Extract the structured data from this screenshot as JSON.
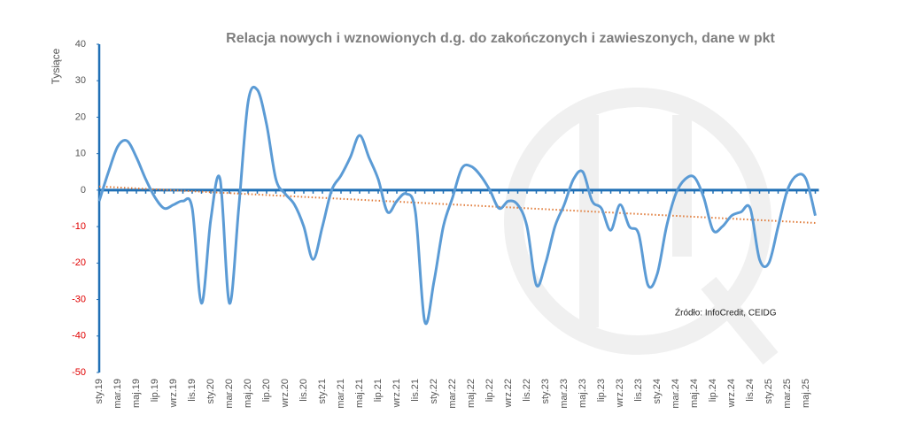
{
  "chart_data": {
    "type": "line",
    "title": "Relacja nowych i wznowionych d.g. do zakończonych i zawieszonych, dane w pkt",
    "y_label": "Tysiące",
    "source": "Źródło: InfoCredit, CEIDG",
    "categories": [
      "sty.19",
      null,
      "mar.19",
      null,
      "maj.19",
      null,
      "lip.19",
      null,
      "wrz.19",
      null,
      "lis.19",
      null,
      "sty.20",
      null,
      "mar.20",
      null,
      "maj.20",
      null,
      "lip.20",
      null,
      "wrz.20",
      null,
      "lis.20",
      null,
      "sty.21",
      null,
      "mar.21",
      null,
      "maj.21",
      null,
      "lip.21",
      null,
      "wrz.21",
      null,
      "lis.21",
      null,
      "sty.22",
      null,
      "mar.22",
      null,
      "maj.22",
      null,
      "lip.22",
      null,
      "wrz.22",
      null,
      "lis.22",
      null,
      "sty.23",
      null,
      "mar.23",
      null,
      "maj.23",
      null,
      "lip.23",
      null,
      "wrz.23",
      null,
      "lis.23",
      null,
      "sty.24",
      null,
      "mar.24",
      null,
      "maj.24",
      null,
      "lip.24",
      null,
      "wrz.24",
      null,
      "lis.24",
      null,
      "sty.25",
      null,
      "mar.25",
      null,
      "maj.25",
      null
    ],
    "series": [
      {
        "color": "#5b9bd5",
        "values": [
          -3,
          5,
          12,
          13.5,
          9,
          3,
          -2,
          -5,
          -4,
          -3,
          -5,
          -31,
          -8,
          3,
          -31,
          -5,
          24,
          27.5,
          18,
          3,
          -1,
          -4,
          -10,
          -19,
          -10,
          0,
          4,
          9,
          15,
          9,
          3,
          -6,
          -3,
          -1,
          -6,
          -36,
          -25,
          -10,
          -2,
          6,
          6.5,
          4,
          0,
          -5,
          -3,
          -4,
          -10,
          -26,
          -20,
          -10,
          -4,
          3,
          5,
          -3,
          -5,
          -11,
          -4,
          -10,
          -12,
          -26,
          -23,
          -10,
          -1,
          3,
          3.5,
          -2,
          -11,
          -10,
          -7,
          -6,
          -5,
          -19,
          -20,
          -10,
          0,
          4,
          3,
          -7
        ]
      }
    ],
    "trendline": {
      "color": "#e07b39",
      "values": [
        1,
        -9
      ]
    },
    "ylim": [
      -50,
      40
    ],
    "yticks": [
      -50,
      -40,
      -30,
      -20,
      -10,
      0,
      10,
      20,
      30,
      40
    ],
    "positive_tick_color": "#555555",
    "negative_tick_color": "#e00000",
    "axis_color": "#1f6fb5"
  }
}
